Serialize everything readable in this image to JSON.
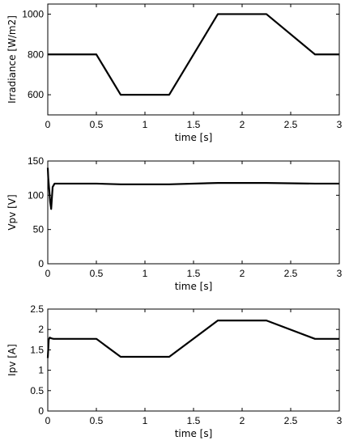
{
  "chart_data": [
    {
      "type": "line",
      "xlabel": "time [s]",
      "ylabel": "Irradiance [W/m2]",
      "xlim": [
        0,
        3
      ],
      "ylim": [
        500,
        1050
      ],
      "xticks": [
        0,
        0.5,
        1,
        1.5,
        2,
        2.5,
        3
      ],
      "xtick_labels": [
        "0",
        "0.5",
        "1",
        "1.5",
        "2",
        "2.5",
        "3"
      ],
      "yticks": [
        600,
        800,
        1000
      ],
      "ytick_labels": [
        "600",
        "800",
        "1000"
      ],
      "grid": false,
      "series": [
        {
          "x": [
            0,
            0.5,
            0.75,
            1.25,
            1.75,
            2.25,
            2.75,
            3
          ],
          "values": [
            800,
            800,
            600,
            600,
            1000,
            1000,
            800,
            800
          ]
        }
      ]
    },
    {
      "type": "line",
      "xlabel": "time [s]",
      "ylabel": "Vpv [V]",
      "xlim": [
        0,
        3
      ],
      "ylim": [
        0,
        150
      ],
      "xticks": [
        0,
        0.5,
        1,
        1.5,
        2,
        2.5,
        3
      ],
      "xtick_labels": [
        "0",
        "0.5",
        "1",
        "1.5",
        "2",
        "2.5",
        "3"
      ],
      "yticks": [
        0,
        50,
        100,
        150
      ],
      "ytick_labels": [
        "0",
        "50",
        "100",
        "150"
      ],
      "grid": false,
      "series": [
        {
          "x": [
            0,
            0.005,
            0.015,
            0.025,
            0.035,
            0.05,
            0.07,
            0.1,
            0.5,
            0.75,
            0.8,
            1.25,
            1.75,
            2.25,
            2.75,
            3
          ],
          "values": [
            140,
            125,
            108,
            90,
            80,
            112,
            117,
            117,
            117,
            116,
            116,
            116,
            118,
            118,
            117,
            117
          ]
        }
      ]
    },
    {
      "type": "line",
      "xlabel": "time [s]",
      "ylabel": "Ipv [A]",
      "xlim": [
        0,
        3
      ],
      "ylim": [
        0,
        2.5
      ],
      "xticks": [
        0,
        0.5,
        1,
        1.5,
        2,
        2.5,
        3
      ],
      "xtick_labels": [
        "0",
        "0.5",
        "1",
        "1.5",
        "2",
        "2.5",
        "3"
      ],
      "yticks": [
        0,
        0.5,
        1,
        1.5,
        2,
        2.5
      ],
      "ytick_labels": [
        "0",
        "0.5",
        "1",
        "1.5",
        "2",
        "2.5"
      ],
      "grid": false,
      "series": [
        {
          "x": [
            0,
            0.01,
            0.02,
            0.04,
            0.06,
            0.1,
            0.5,
            0.75,
            1.25,
            1.75,
            2.25,
            2.75,
            3
          ],
          "values": [
            1.3,
            1.75,
            1.8,
            1.78,
            1.77,
            1.77,
            1.77,
            1.33,
            1.33,
            2.22,
            2.22,
            1.77,
            1.77
          ]
        }
      ]
    }
  ]
}
